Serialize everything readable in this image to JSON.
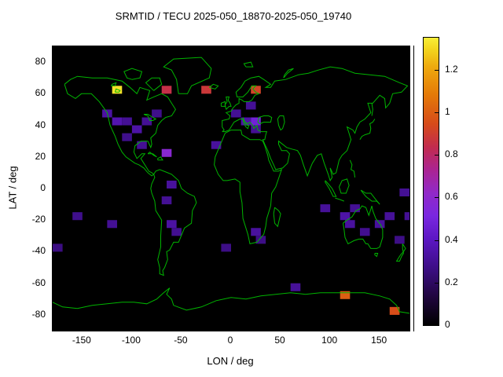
{
  "chart_data": {
    "type": "heatmap",
    "title": "SRMTID / TECU 2025-050_18870-2025-050_19740",
    "xlabel": "LON / deg",
    "ylabel": "LAT / deg",
    "xlim": [
      -180,
      180
    ],
    "ylim": [
      -90,
      90
    ],
    "xticks": [
      -150,
      -100,
      -50,
      0,
      50,
      100,
      150
    ],
    "yticks": [
      -80,
      -60,
      -40,
      -20,
      0,
      20,
      40,
      60,
      80
    ],
    "grid": false,
    "plot_background": "#000000",
    "coast_color": "#00b400",
    "colorbar": {
      "min": 0,
      "max": 1.35,
      "ticks": [
        0,
        0.2,
        0.4,
        0.6,
        0.8,
        1,
        1.2
      ],
      "tick_labels": [
        "0",
        "0.2",
        "0.4",
        "0.6",
        "0.8",
        "1",
        "1.2"
      ]
    },
    "cell_size": {
      "lon": 10,
      "lat": 5
    },
    "palette": [
      [
        0.0,
        "#000000"
      ],
      [
        0.1,
        "#20063f"
      ],
      [
        0.2,
        "#3d0e86"
      ],
      [
        0.3,
        "#5c17c4"
      ],
      [
        0.38,
        "#7a27e0"
      ],
      [
        0.46,
        "#9129c8"
      ],
      [
        0.54,
        "#ab2492"
      ],
      [
        0.62,
        "#c22c4e"
      ],
      [
        0.7,
        "#d64b1a"
      ],
      [
        0.8,
        "#e47908"
      ],
      [
        0.9,
        "#eeaa0e"
      ],
      [
        0.96,
        "#f3d51e"
      ],
      [
        1.0,
        "#f8ef37"
      ]
    ],
    "cells": [
      {
        "lon": -120,
        "lat": 60,
        "v": 1.32
      },
      {
        "lon": -70,
        "lat": 60,
        "v": 0.85
      },
      {
        "lon": -30,
        "lat": 60,
        "v": 0.88
      },
      {
        "lon": 20,
        "lat": 60,
        "v": 0.92
      },
      {
        "lon": 15,
        "lat": 50,
        "v": 0.3
      },
      {
        "lon": -130,
        "lat": 45,
        "v": 0.33
      },
      {
        "lon": -120,
        "lat": 40,
        "v": 0.36
      },
      {
        "lon": -110,
        "lat": 40,
        "v": 0.3
      },
      {
        "lon": -100,
        "lat": 35,
        "v": 0.34
      },
      {
        "lon": -90,
        "lat": 40,
        "v": 0.3
      },
      {
        "lon": -80,
        "lat": 45,
        "v": 0.28
      },
      {
        "lon": -110,
        "lat": 30,
        "v": 0.28
      },
      {
        "lon": -95,
        "lat": 25,
        "v": 0.3
      },
      {
        "lon": -70,
        "lat": 20,
        "v": 0.58
      },
      {
        "lon": -20,
        "lat": 25,
        "v": 0.32
      },
      {
        "lon": 0,
        "lat": 45,
        "v": 0.3
      },
      {
        "lon": 10,
        "lat": 40,
        "v": 0.34
      },
      {
        "lon": 20,
        "lat": 40,
        "v": 0.48
      },
      {
        "lon": 20,
        "lat": 35,
        "v": 0.3
      },
      {
        "lon": -65,
        "lat": 0,
        "v": 0.32
      },
      {
        "lon": -70,
        "lat": -10,
        "v": 0.3
      },
      {
        "lon": -160,
        "lat": -20,
        "v": 0.28
      },
      {
        "lon": -125,
        "lat": -25,
        "v": 0.3
      },
      {
        "lon": -65,
        "lat": -25,
        "v": 0.33
      },
      {
        "lon": -60,
        "lat": -30,
        "v": 0.29
      },
      {
        "lon": 20,
        "lat": -30,
        "v": 0.32
      },
      {
        "lon": 25,
        "lat": -35,
        "v": 0.27
      },
      {
        "lon": 90,
        "lat": -15,
        "v": 0.31
      },
      {
        "lon": 110,
        "lat": -20,
        "v": 0.34
      },
      {
        "lon": 120,
        "lat": -15,
        "v": 0.3
      },
      {
        "lon": 115,
        "lat": -25,
        "v": 0.32
      },
      {
        "lon": 130,
        "lat": -30,
        "v": 0.29
      },
      {
        "lon": 145,
        "lat": -25,
        "v": 0.32
      },
      {
        "lon": 155,
        "lat": -20,
        "v": 0.31
      },
      {
        "lon": 170,
        "lat": -5,
        "v": 0.3
      },
      {
        "lon": 175,
        "lat": -20,
        "v": 0.3
      },
      {
        "lon": 165,
        "lat": -35,
        "v": 0.27
      },
      {
        "lon": -10,
        "lat": -40,
        "v": 0.27
      },
      {
        "lon": -180,
        "lat": -40,
        "v": 0.26
      },
      {
        "lon": 60,
        "lat": -65,
        "v": 0.31
      },
      {
        "lon": 110,
        "lat": -70,
        "v": 1.0
      },
      {
        "lon": 160,
        "lat": -80,
        "v": 0.95
      }
    ]
  }
}
